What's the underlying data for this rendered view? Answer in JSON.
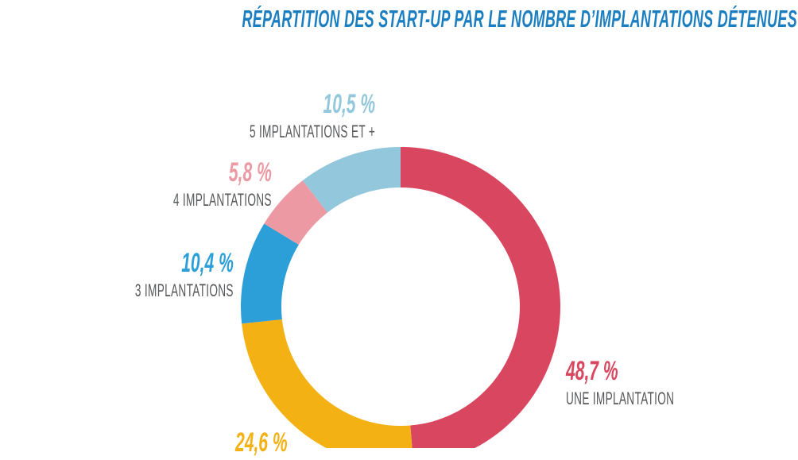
{
  "page": {
    "background": "#FFFFFF"
  },
  "title": {
    "text": "RÉPARTITION DES START-UP PAR LE NOMBRE D’IMPLANTATIONS DÉTENUES À L’ÉTRANGER",
    "color": "#1A7EC1"
  },
  "chart_data": {
    "type": "pie",
    "subtype": "donut",
    "title": "Répartition des start-up par le nombre d’implantations détenues à l’étranger",
    "unit": "%",
    "start_angle_deg": -90,
    "direction": "clockwise",
    "inner_radius_ratio": 0.75,
    "label_color": "#58595B",
    "segments": [
      {
        "label": "UNE IMPLANTATION",
        "value": 48.7,
        "value_text": "48,7 %",
        "color": "#D9465F"
      },
      {
        "label": "",
        "value": 24.6,
        "value_text": "24,6 %",
        "color": "#F3B114"
      },
      {
        "label": "3 IMPLANTATIONS",
        "value": 10.4,
        "value_text": "10,4 %",
        "color": "#2C9FD9"
      },
      {
        "label": "4 IMPLANTATIONS",
        "value": 5.8,
        "value_text": "5,8 %",
        "color": "#EC99A3"
      },
      {
        "label": "5 IMPLANTATIONS ET +",
        "value": 10.5,
        "value_text": "10,5 %",
        "color": "#92C7DC"
      }
    ]
  }
}
